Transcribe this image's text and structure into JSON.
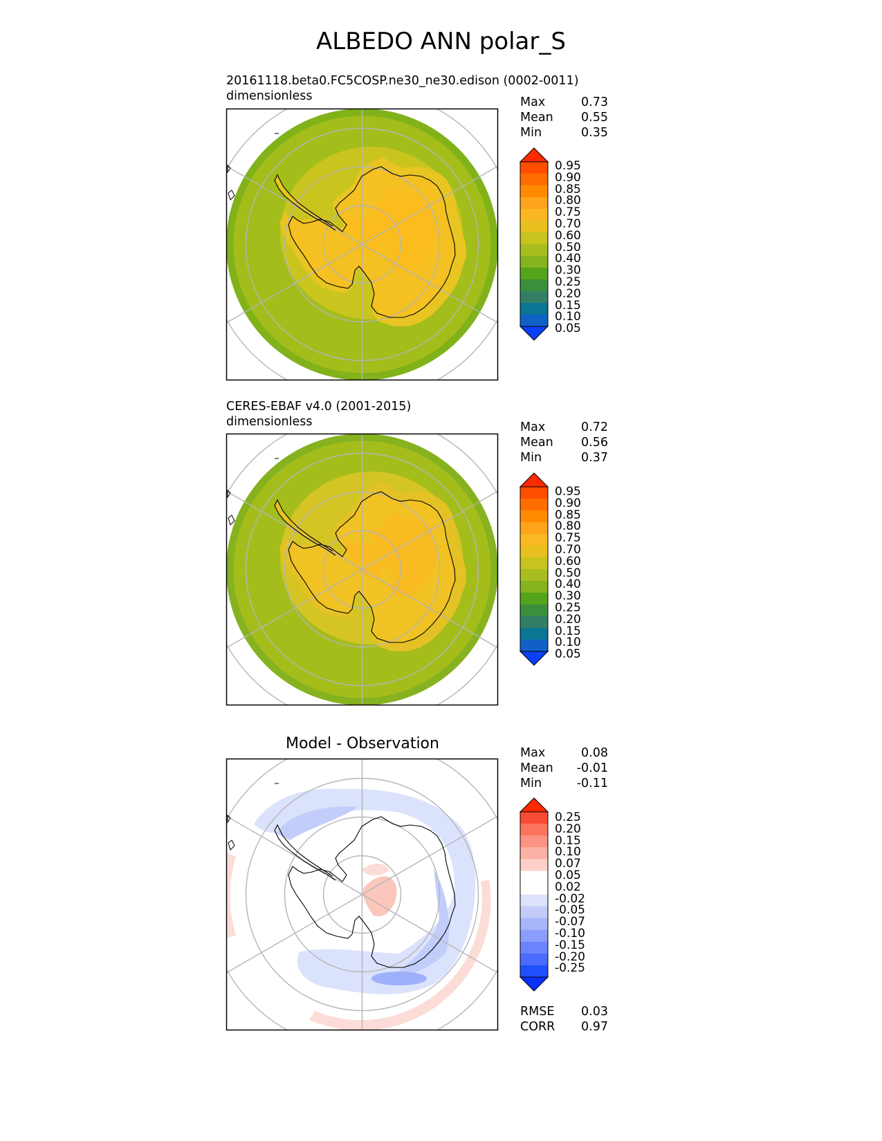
{
  "title": "ALBEDO ANN polar_S",
  "panels": [
    {
      "title_line1": "20161118.beta0.FC5COSP.ne30_ne30.edison (0002-0011)",
      "title_line2": "dimensionless",
      "stats": {
        "max_label": "Max",
        "max": "0.73",
        "mean_label": "Mean",
        "mean": "0.55",
        "min_label": "Min",
        "min": "0.35"
      },
      "colorbar": {
        "labels": [
          "0.95",
          "0.90",
          "0.85",
          "0.80",
          "0.75",
          "0.70",
          "0.60",
          "0.50",
          "0.40",
          "0.30",
          "0.25",
          "0.20",
          "0.15",
          "0.10",
          "0.05"
        ],
        "colors": [
          "#ff2a00",
          "#ff4e00",
          "#ff6d00",
          "#ff8a00",
          "#ffa41a",
          "#fbb822",
          "#e8c020",
          "#c8c41e",
          "#a8be1e",
          "#86b41c",
          "#55a51a",
          "#3b8f3c",
          "#337f66",
          "#0b7594",
          "#1160c6",
          "#0a40f5"
        ]
      },
      "fields": {
        "coast": "#000000",
        "land_high": "#fbbd1d",
        "land_mid": "#f4c022",
        "land_low": "#e8c523",
        "ice": "#c9c51e",
        "ocean": "#a3bd1b",
        "ocean_edge": "#81b21a"
      }
    },
    {
      "title_line1": "CERES-EBAF v4.0 (2001-2015)",
      "title_line2": "dimensionless",
      "stats": {
        "max_label": "Max",
        "max": "0.72",
        "mean_label": "Mean",
        "mean": "0.56",
        "min_label": "Min",
        "min": "0.37"
      },
      "colorbar": {
        "labels": [
          "0.95",
          "0.90",
          "0.85",
          "0.80",
          "0.75",
          "0.70",
          "0.60",
          "0.50",
          "0.40",
          "0.30",
          "0.25",
          "0.20",
          "0.15",
          "0.10",
          "0.05"
        ],
        "colors": [
          "#ff2a00",
          "#ff4e00",
          "#ff6d00",
          "#ff8a00",
          "#ffa41a",
          "#fbb822",
          "#e8c020",
          "#c8c41e",
          "#a8be1e",
          "#86b41c",
          "#55a51a",
          "#3b8f3c",
          "#337f66",
          "#0b7594",
          "#1160c6",
          "#0a40f5"
        ]
      },
      "fields": {
        "coast": "#000000",
        "land_high": "#f9bb22",
        "land_mid": "#f1c224",
        "land_low": "#e4c226",
        "ice": "#d4c424",
        "ocean": "#a4bd1b",
        "ocean_edge": "#86b21f"
      }
    },
    {
      "title": "Model - Observation",
      "stats": {
        "max_label": "Max",
        "max": "0.08",
        "mean_label": "Mean",
        "mean": "-0.01",
        "min_label": "Min",
        "min": "-0.11"
      },
      "metrics": {
        "rmse_label": "RMSE",
        "rmse": "0.03",
        "corr_label": "CORR",
        "corr": "0.97"
      },
      "colorbar": {
        "labels": [
          "0.25",
          "0.20",
          "0.15",
          "0.10",
          "0.07",
          "0.05",
          "0.02",
          "-0.02",
          "-0.05",
          "-0.07",
          "-0.10",
          "-0.15",
          "-0.20",
          "-0.25"
        ],
        "colors": [
          "#ff2a00",
          "#f84b34",
          "#fb735c",
          "#fb9282",
          "#fdb1a5",
          "#fcd0c8",
          "#ffffff",
          "#ffffff",
          "#dde3fa",
          "#c3ccf9",
          "#a7b5fa",
          "#8a9dfa",
          "#6b84fc",
          "#4a6bfd",
          "#2050fb",
          "#0a30fb"
        ]
      },
      "fields": {
        "coast": "#000000",
        "neg_light": "#dbe2fb",
        "neg_mid": "#c3cdf9",
        "neg_strong": "#9eb0fa",
        "pos_light": "#fcdcd6",
        "pos_mid": "#fbc7bd"
      }
    }
  ]
}
